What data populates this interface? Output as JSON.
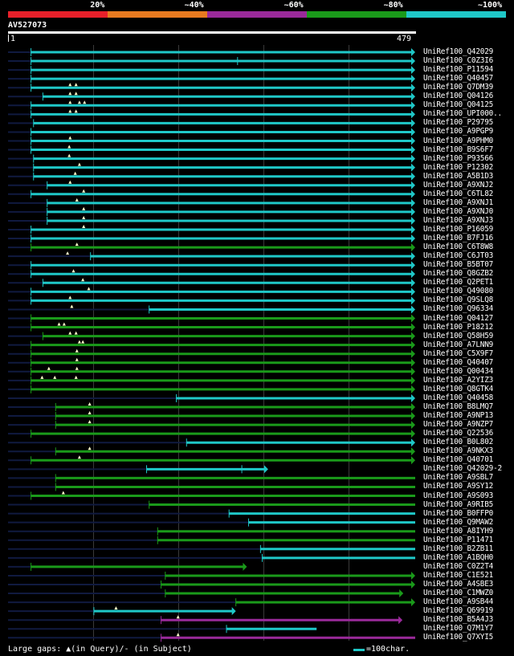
{
  "legend": {
    "segments": [
      {
        "label": "20%",
        "color": "#e8202a"
      },
      {
        "label": "~40%",
        "color": "#e87a20"
      },
      {
        "label": "~60%",
        "color": "#9a2a9a"
      },
      {
        "label": "~80%",
        "color": "#1a9a1a"
      },
      {
        "label": "~100%",
        "color": "#1fc8c8"
      }
    ]
  },
  "query": {
    "id": "AV527073",
    "start": "1",
    "end": "479",
    "length": 479
  },
  "colors": {
    "cyan": "#1fc8c8",
    "green": "#1a9a1a",
    "purple": "#9a2a9a",
    "navy": "#101a40"
  },
  "hits": [
    {
      "name": "UniRef100_Q42029",
      "c": "cyan",
      "s": 27,
      "e": 479,
      "a": 1,
      "gaps": [],
      "sub": []
    },
    {
      "name": "UniRef100_C0Z3I6",
      "c": "cyan",
      "s": 27,
      "e": 479,
      "a": 1,
      "gaps": [],
      "sub": [
        270
      ]
    },
    {
      "name": "UniRef100_P11594",
      "c": "cyan",
      "s": 27,
      "e": 479,
      "a": 1,
      "gaps": [],
      "sub": []
    },
    {
      "name": "UniRef100_Q40457",
      "c": "cyan",
      "s": 27,
      "e": 479,
      "a": 1,
      "gaps": [],
      "sub": []
    },
    {
      "name": "UniRef100_Q7DM39",
      "c": "cyan",
      "s": 27,
      "e": 479,
      "a": 1,
      "gaps": [
        73,
        80
      ],
      "sub": []
    },
    {
      "name": "UniRef100_Q04126",
      "c": "cyan",
      "s": 41,
      "e": 479,
      "a": 1,
      "gaps": [
        73,
        80
      ],
      "sub": []
    },
    {
      "name": "UniRef100_Q04125",
      "c": "cyan",
      "s": 27,
      "e": 479,
      "a": 1,
      "gaps": [
        73,
        84,
        90
      ],
      "sub": []
    },
    {
      "name": "UniRef100_UPI000..",
      "c": "cyan",
      "s": 27,
      "e": 479,
      "a": 1,
      "gaps": [
        73,
        80
      ],
      "sub": []
    },
    {
      "name": "UniRef100_P29795",
      "c": "cyan",
      "s": 30,
      "e": 479,
      "a": 1,
      "gaps": [],
      "sub": []
    },
    {
      "name": "UniRef100_A9PGP9",
      "c": "cyan",
      "s": 27,
      "e": 479,
      "a": 1,
      "gaps": [],
      "sub": []
    },
    {
      "name": "UniRef100_A9PHM0",
      "c": "cyan",
      "s": 27,
      "e": 479,
      "a": 1,
      "gaps": [
        73
      ],
      "sub": []
    },
    {
      "name": "UniRef100_B9S6F7",
      "c": "cyan",
      "s": 27,
      "e": 479,
      "a": 1,
      "gaps": [
        72
      ],
      "sub": []
    },
    {
      "name": "UniRef100_P93566",
      "c": "cyan",
      "s": 30,
      "e": 479,
      "a": 1,
      "gaps": [
        72
      ],
      "sub": []
    },
    {
      "name": "UniRef100_P12302",
      "c": "cyan",
      "s": 30,
      "e": 479,
      "a": 1,
      "gaps": [
        84
      ],
      "sub": []
    },
    {
      "name": "UniRef100_A5B1D3",
      "c": "cyan",
      "s": 30,
      "e": 479,
      "a": 1,
      "gaps": [
        79
      ],
      "sub": []
    },
    {
      "name": "UniRef100_A9XNJ2",
      "c": "cyan",
      "s": 46,
      "e": 479,
      "a": 1,
      "gaps": [
        73
      ],
      "sub": []
    },
    {
      "name": "UniRef100_C6TL82",
      "c": "cyan",
      "s": 27,
      "e": 479,
      "a": 1,
      "gaps": [
        89
      ],
      "sub": []
    },
    {
      "name": "UniRef100_A9XNJ1",
      "c": "cyan",
      "s": 46,
      "e": 479,
      "a": 1,
      "gaps": [
        81
      ],
      "sub": []
    },
    {
      "name": "UniRef100_A9XNJ0",
      "c": "cyan",
      "s": 46,
      "e": 479,
      "a": 1,
      "gaps": [
        89
      ],
      "sub": []
    },
    {
      "name": "UniRef100_A9XNJ3",
      "c": "cyan",
      "s": 46,
      "e": 479,
      "a": 1,
      "gaps": [
        89
      ],
      "sub": []
    },
    {
      "name": "UniRef100_P16059",
      "c": "cyan",
      "s": 27,
      "e": 479,
      "a": 1,
      "gaps": [
        89
      ],
      "sub": []
    },
    {
      "name": "UniRef100_B7FJ16",
      "c": "cyan",
      "s": 27,
      "e": 479,
      "a": 1,
      "gaps": [],
      "sub": []
    },
    {
      "name": "UniRef100_C6T8W8",
      "c": "green",
      "s": 27,
      "e": 479,
      "a": 1,
      "gaps": [
        81
      ],
      "sub": []
    },
    {
      "name": "UniRef100_C6JT03",
      "c": "cyan",
      "s": 97,
      "e": 479,
      "a": 1,
      "gaps": [
        70
      ],
      "sub": []
    },
    {
      "name": "UniRef100_B5BT07",
      "c": "cyan",
      "s": 27,
      "e": 479,
      "a": 1,
      "gaps": [],
      "sub": []
    },
    {
      "name": "UniRef100_Q8GZB2",
      "c": "cyan",
      "s": 27,
      "e": 479,
      "a": 1,
      "gaps": [
        77
      ],
      "sub": []
    },
    {
      "name": "UniRef100_Q2PET1",
      "c": "cyan",
      "s": 41,
      "e": 479,
      "a": 1,
      "gaps": [
        88
      ],
      "sub": []
    },
    {
      "name": "UniRef100_Q49080",
      "c": "cyan",
      "s": 27,
      "e": 479,
      "a": 1,
      "gaps": [
        95
      ],
      "sub": []
    },
    {
      "name": "UniRef100_Q9SLQ8",
      "c": "cyan",
      "s": 27,
      "e": 479,
      "a": 1,
      "gaps": [
        73
      ],
      "sub": []
    },
    {
      "name": "UniRef100_Q96334",
      "c": "cyan",
      "s": 166,
      "e": 479,
      "a": 1,
      "gaps": [
        75
      ],
      "sub": []
    },
    {
      "name": "UniRef100_Q04127",
      "c": "green",
      "s": 27,
      "e": 479,
      "a": 1,
      "gaps": [],
      "sub": []
    },
    {
      "name": "UniRef100_P18212",
      "c": "green",
      "s": 27,
      "e": 479,
      "a": 1,
      "gaps": [
        60,
        66
      ],
      "sub": []
    },
    {
      "name": "UniRef100_Q58H59",
      "c": "green",
      "s": 41,
      "e": 479,
      "a": 1,
      "gaps": [
        73,
        80
      ],
      "sub": []
    },
    {
      "name": "UniRef100_A7LNN9",
      "c": "green",
      "s": 27,
      "e": 479,
      "a": 1,
      "gaps": [
        84,
        88
      ],
      "sub": []
    },
    {
      "name": "UniRef100_C5X9F7",
      "c": "green",
      "s": 27,
      "e": 479,
      "a": 1,
      "gaps": [
        81
      ],
      "sub": []
    },
    {
      "name": "UniRef100_Q40407",
      "c": "green",
      "s": 27,
      "e": 479,
      "a": 1,
      "gaps": [
        81
      ],
      "sub": []
    },
    {
      "name": "UniRef100_Q00434",
      "c": "green",
      "s": 27,
      "e": 479,
      "a": 1,
      "gaps": [
        48,
        81
      ],
      "sub": []
    },
    {
      "name": "UniRef100_A2YIZ3",
      "c": "green",
      "s": 27,
      "e": 479,
      "a": 1,
      "gaps": [
        40,
        55,
        80
      ],
      "sub": []
    },
    {
      "name": "UniRef100_Q8GTK4",
      "c": "green",
      "s": 27,
      "e": 479,
      "a": 1,
      "gaps": [],
      "sub": []
    },
    {
      "name": "UniRef100_Q40458",
      "c": "cyan",
      "s": 198,
      "e": 479,
      "a": 1,
      "gaps": [],
      "sub": []
    },
    {
      "name": "UniRef100_B8LMQ7",
      "c": "green",
      "s": 56,
      "e": 479,
      "a": 1,
      "gaps": [
        96
      ],
      "sub": []
    },
    {
      "name": "UniRef100_A9NP13",
      "c": "green",
      "s": 56,
      "e": 479,
      "a": 1,
      "gaps": [
        96
      ],
      "sub": []
    },
    {
      "name": "UniRef100_A9NZP7",
      "c": "green",
      "s": 56,
      "e": 479,
      "a": 1,
      "gaps": [
        96
      ],
      "sub": []
    },
    {
      "name": "UniRef100_Q22536",
      "c": "green",
      "s": 27,
      "e": 479,
      "a": 1,
      "gaps": [],
      "sub": []
    },
    {
      "name": "UniRef100_B0L802",
      "c": "cyan",
      "s": 210,
      "e": 479,
      "a": 1,
      "gaps": [],
      "sub": []
    },
    {
      "name": "UniRef100_A9NKX3",
      "c": "green",
      "s": 56,
      "e": 479,
      "a": 1,
      "gaps": [
        96
      ],
      "sub": []
    },
    {
      "name": "UniRef100_Q40701",
      "c": "green",
      "s": 27,
      "e": 479,
      "a": 1,
      "gaps": [
        84
      ],
      "sub": []
    },
    {
      "name": "UniRef100_Q42029-2",
      "c": "cyan",
      "s": 163,
      "e": 306,
      "a": 1,
      "gaps": [],
      "sub": [
        275
      ]
    },
    {
      "name": "UniRef100_A9SBL7",
      "c": "green",
      "s": 56,
      "e": 479,
      "a": 0,
      "gaps": [],
      "sub": []
    },
    {
      "name": "UniRef100_A9SY12",
      "c": "green",
      "s": 56,
      "e": 479,
      "a": 0,
      "gaps": [],
      "sub": []
    },
    {
      "name": "UniRef100_A9S093",
      "c": "green",
      "s": 27,
      "e": 479,
      "a": 0,
      "gaps": [
        65
      ],
      "sub": []
    },
    {
      "name": "UniRef100_A9RIB5",
      "c": "green",
      "s": 166,
      "e": 479,
      "a": 0,
      "gaps": [],
      "sub": []
    },
    {
      "name": "UniRef100_B0FFP0",
      "c": "cyan",
      "s": 260,
      "e": 479,
      "a": 0,
      "gaps": [],
      "sub": []
    },
    {
      "name": "UniRef100_Q9MAW2",
      "c": "cyan",
      "s": 283,
      "e": 479,
      "a": 0,
      "gaps": [],
      "sub": []
    },
    {
      "name": "UniRef100_A8IYH9",
      "c": "green",
      "s": 176,
      "e": 479,
      "a": 0,
      "gaps": [],
      "sub": []
    },
    {
      "name": "UniRef100_P11471",
      "c": "green",
      "s": 176,
      "e": 479,
      "a": 0,
      "gaps": [],
      "sub": []
    },
    {
      "name": "UniRef100_B2ZB11",
      "c": "cyan",
      "s": 297,
      "e": 479,
      "a": 0,
      "gaps": [],
      "sub": []
    },
    {
      "name": "UniRef100_A1BQH0",
      "c": "cyan",
      "s": 299,
      "e": 479,
      "a": 0,
      "gaps": [],
      "sub": []
    },
    {
      "name": "UniRef100_C0Z2T4",
      "c": "green",
      "s": 27,
      "e": 281,
      "a": 1,
      "gaps": [],
      "sub": []
    },
    {
      "name": "UniRef100_C1E521",
      "c": "green",
      "s": 185,
      "e": 479,
      "a": 1,
      "gaps": [],
      "sub": []
    },
    {
      "name": "UniRef100_A4SBE3",
      "c": "green",
      "s": 180,
      "e": 479,
      "a": 1,
      "gaps": [],
      "sub": []
    },
    {
      "name": "UniRef100_C1MWZ0",
      "c": "green",
      "s": 185,
      "e": 465,
      "a": 1,
      "gaps": [],
      "sub": []
    },
    {
      "name": "UniRef100_A9SB44",
      "c": "green",
      "s": 268,
      "e": 479,
      "a": 1,
      "gaps": [],
      "sub": []
    },
    {
      "name": "UniRef100_Q69919",
      "c": "cyan",
      "s": 101,
      "e": 268,
      "a": 1,
      "gaps": [
        127
      ],
      "sub": []
    },
    {
      "name": "UniRef100_B5A4J3",
      "c": "purple",
      "s": 180,
      "e": 464,
      "a": 1,
      "gaps": [
        200
      ],
      "sub": []
    },
    {
      "name": "UniRef100_Q7M1Y7",
      "c": "cyan",
      "s": 257,
      "e": 363,
      "a": 0,
      "gaps": [],
      "sub": []
    },
    {
      "name": "UniRef100_Q7XYI5",
      "c": "purple",
      "s": 180,
      "e": 479,
      "a": 0,
      "gaps": [
        200
      ],
      "sub": []
    }
  ],
  "footer": {
    "note": "Large gaps: ▲(in Query)/- (in Subject)",
    "scale": "=100char."
  }
}
